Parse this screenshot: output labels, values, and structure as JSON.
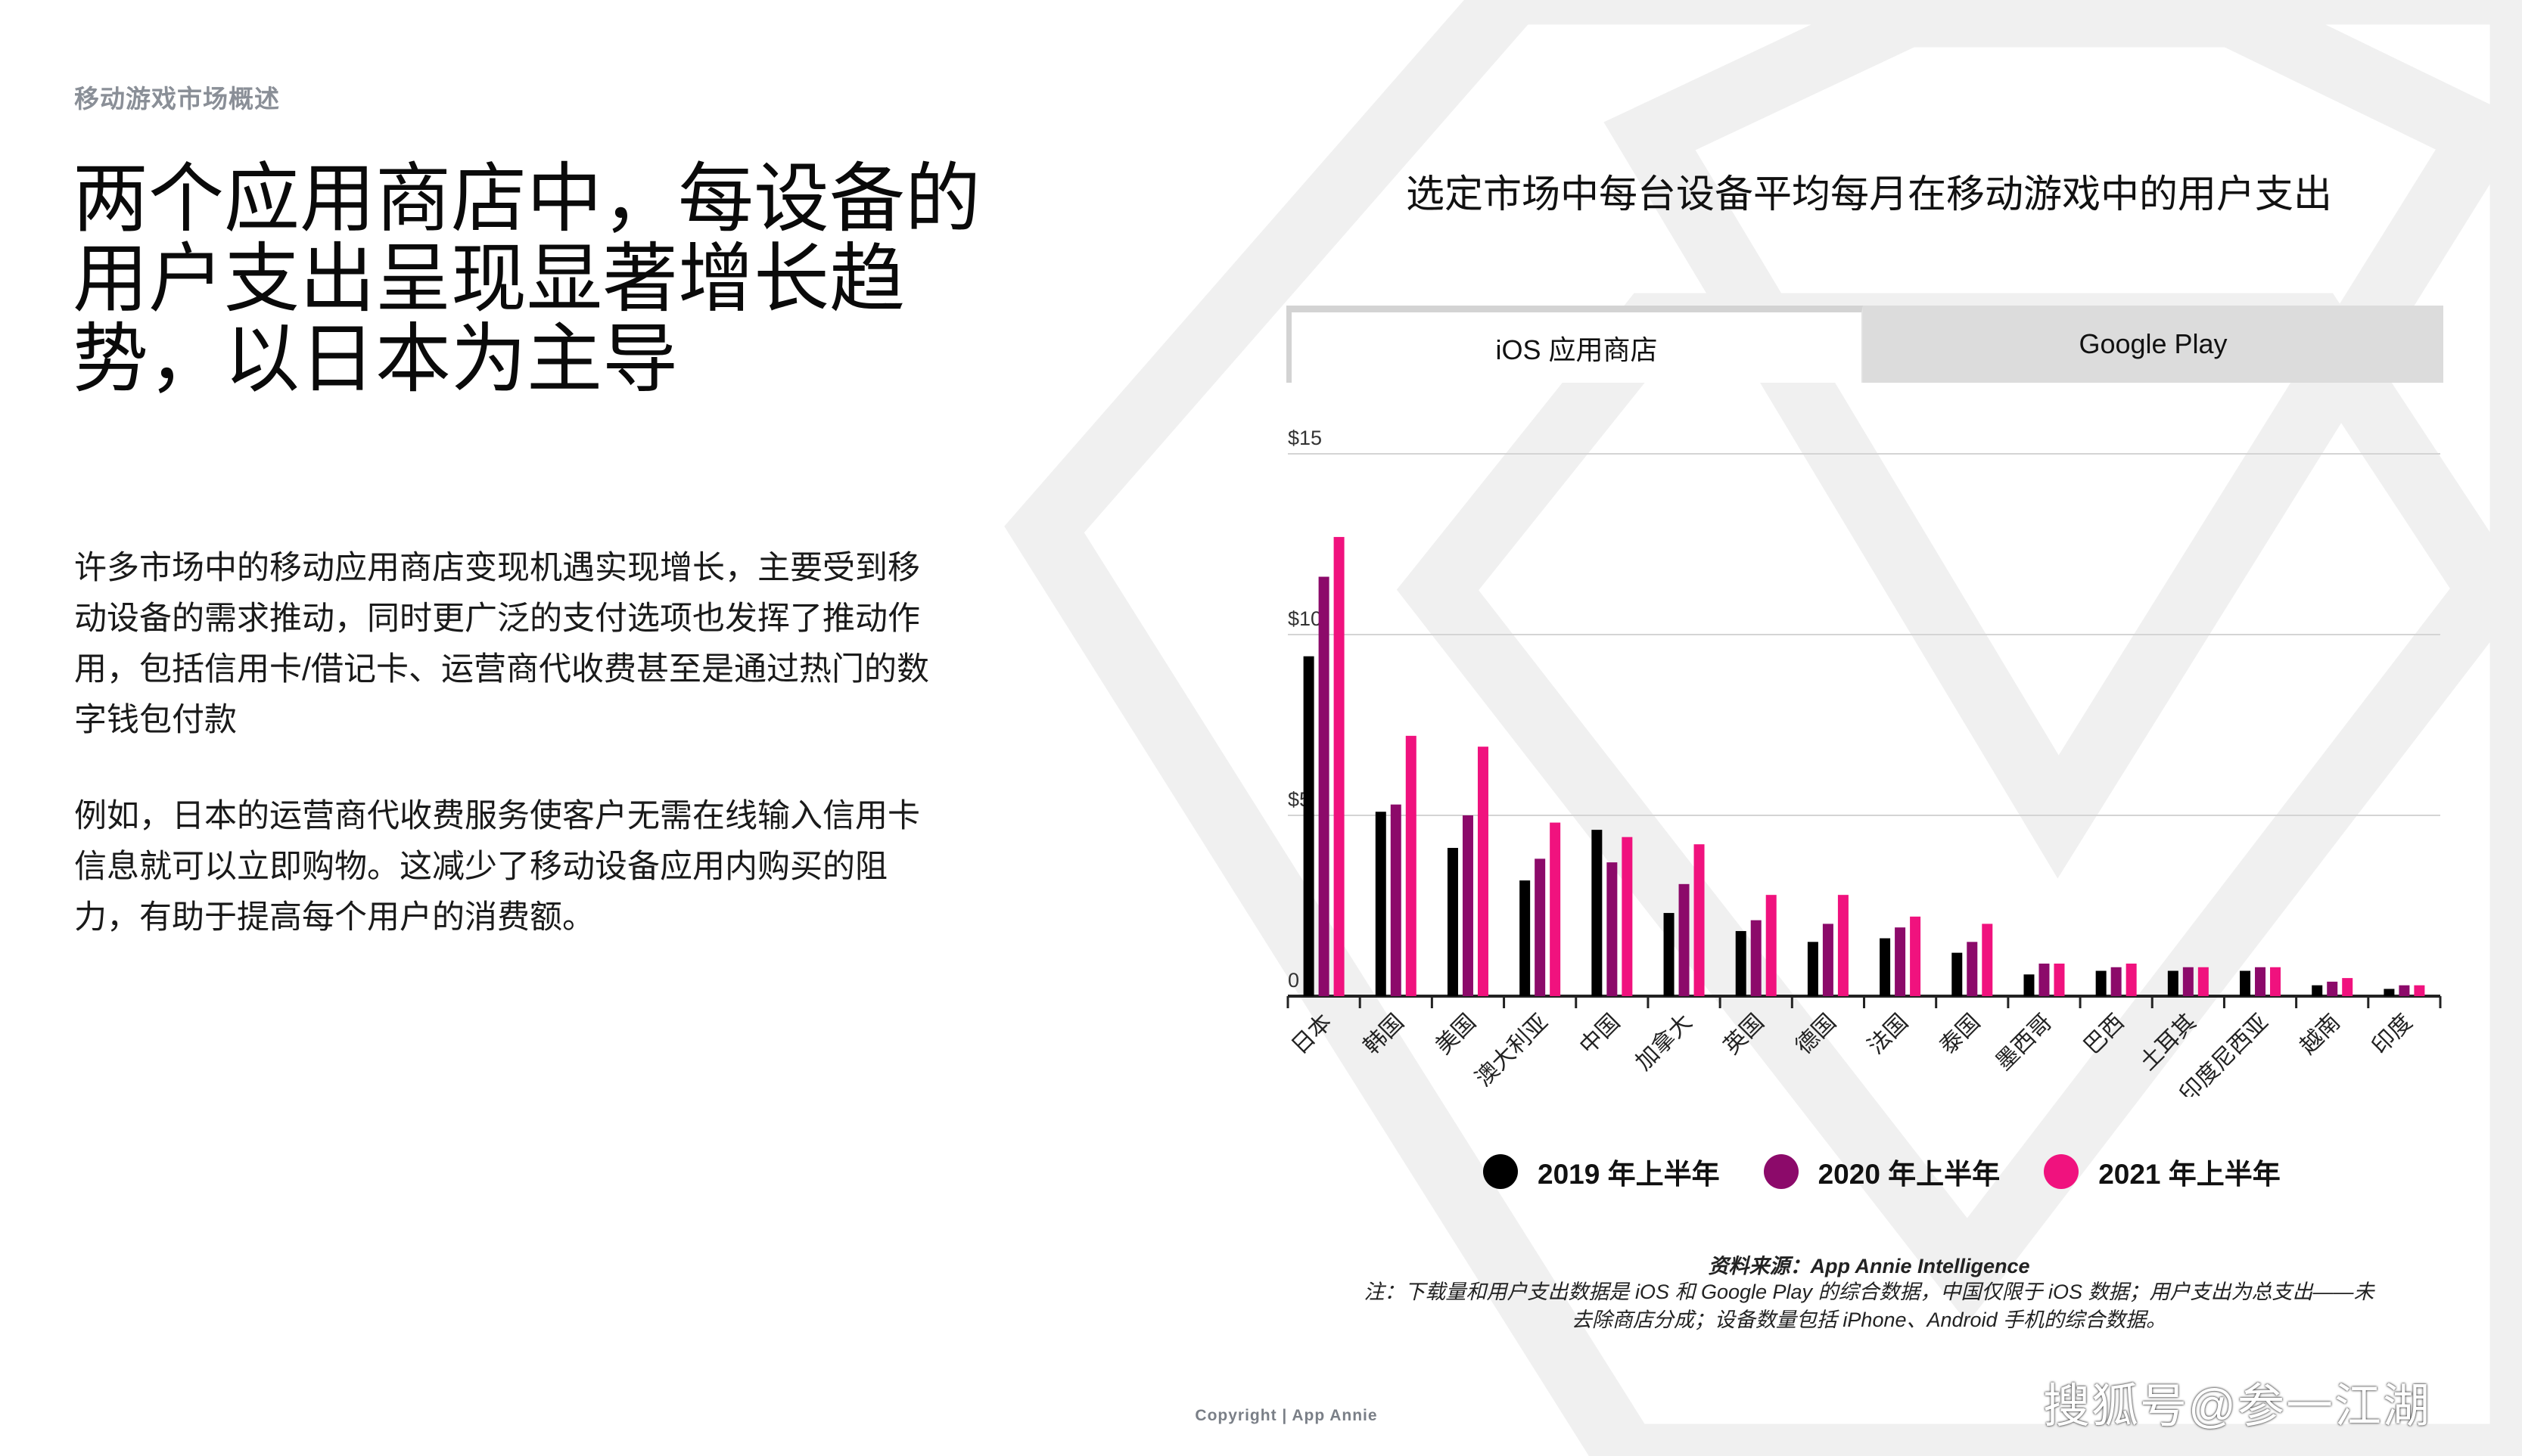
{
  "section_label": "移动游戏市场概述",
  "headline": "两个应用商店中，每设备的用户支出呈现显著增长趋势，以日本为主导",
  "paragraphs": [
    "许多市场中的移动应用商店变现机遇实现增长，主要受到移动设备的需求推动，同时更广泛的支付选项也发挥了推动作用，包括信用卡/借记卡、运营商代收费甚至是通过热门的数字钱包付款",
    "例如，日本的运营商代收费服务使客户无需在线输入信用卡信息就可以立即购物。这减少了移动设备应用内购买的阻力，有助于提高每个用户的消费额。"
  ],
  "tabs": {
    "ios": "iOS 应用商店",
    "google_play": "Google Play"
  },
  "chart_data": {
    "type": "bar",
    "title": "选定市场中每台设备平均每月在移动游戏中的用户支出",
    "categories": [
      "日本",
      "韩国",
      "美国",
      "澳大利亚",
      "中国",
      "加拿大",
      "英国",
      "德国",
      "法国",
      "泰国",
      "墨西哥",
      "巴西",
      "土耳其",
      "印度尼西亚",
      "越南",
      "印度"
    ],
    "series": [
      {
        "name": "2019 年上半年",
        "color": "#000000",
        "values": [
          9.4,
          5.1,
          4.1,
          3.2,
          4.6,
          2.3,
          1.8,
          1.5,
          1.6,
          1.2,
          0.6,
          0.7,
          0.7,
          0.7,
          0.3,
          0.2
        ]
      },
      {
        "name": "2020 年上半年",
        "color": "#8c0a6a",
        "values": [
          11.6,
          5.3,
          5.0,
          3.8,
          3.7,
          3.1,
          2.1,
          2.0,
          1.9,
          1.5,
          0.9,
          0.8,
          0.8,
          0.8,
          0.4,
          0.3
        ]
      },
      {
        "name": "2021 年上半年",
        "color": "#f0127e",
        "values": [
          12.7,
          7.2,
          6.9,
          4.8,
          4.4,
          4.2,
          2.8,
          2.8,
          2.2,
          2.0,
          0.9,
          0.9,
          0.8,
          0.8,
          0.5,
          0.3
        ]
      }
    ],
    "yticks": [
      "0",
      "$5",
      "$10",
      "$15"
    ],
    "ylim": [
      0,
      15
    ],
    "grid": true,
    "legend": "bottom"
  },
  "source_line": "资料来源：App Annie Intelligence",
  "note": "注：下载量和用户支出数据是 iOS 和 Google Play 的综合数据，中国仅限于 iOS 数据；用户支出为总支出——未去除商店分成；设备数量包括 iPhone、Android 手机的综合数据。",
  "copyright": "Copyright | App Annie",
  "watermark": "搜狐号@参一江湖"
}
